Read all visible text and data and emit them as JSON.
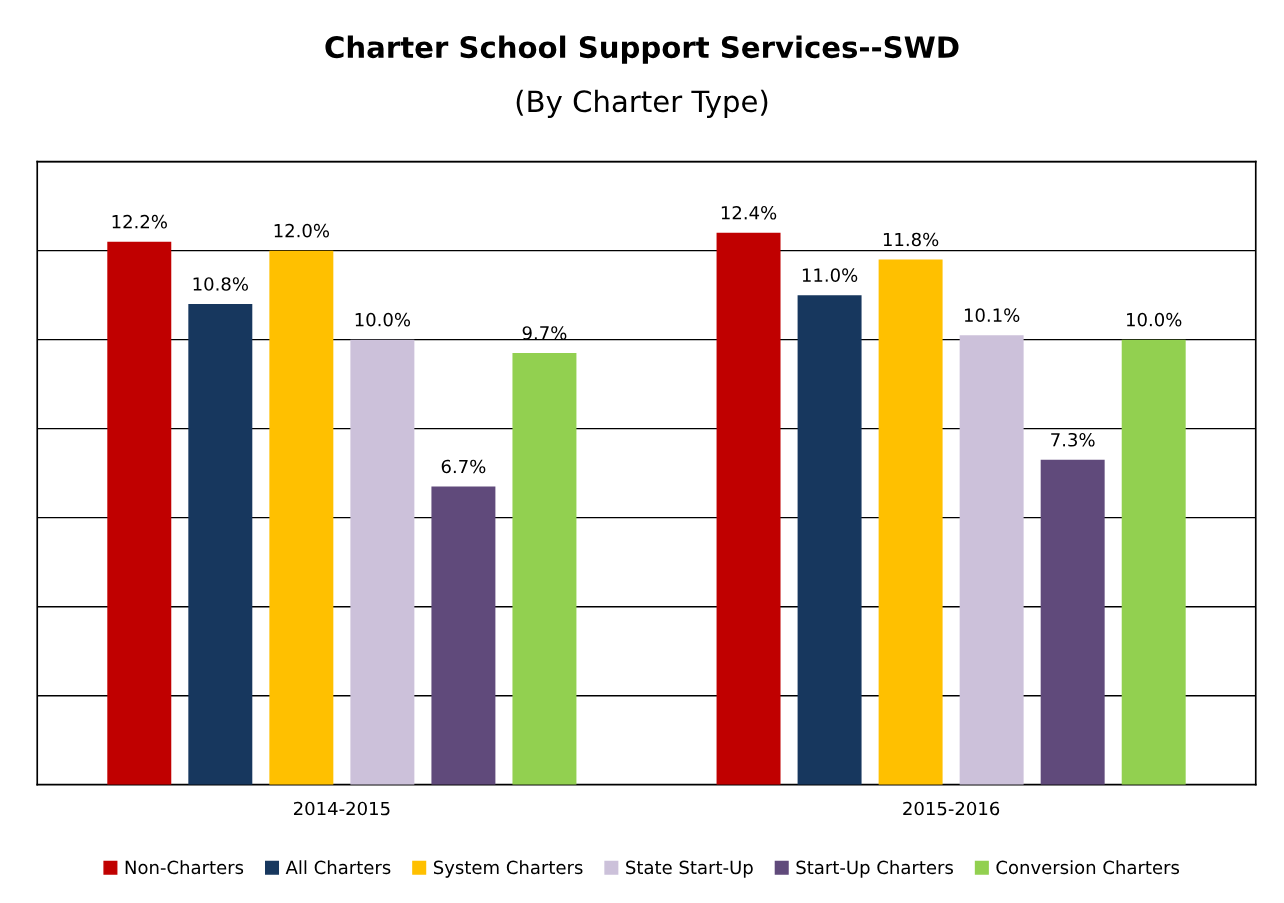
{
  "chart_data": {
    "type": "bar",
    "title": "Charter School Support Services--SWD",
    "subtitle": "(By Charter Type)",
    "categories": [
      "2014-2015",
      "2015-2016"
    ],
    "series": [
      {
        "name": "Non-Charters",
        "color": "#c00000",
        "values": [
          12.2,
          12.4
        ],
        "value_labels": [
          "12.2%",
          "12.4%"
        ]
      },
      {
        "name": "All Charters",
        "color": "#17375e",
        "values": [
          10.8,
          11.0
        ],
        "value_labels": [
          "10.8%",
          "11.0%"
        ]
      },
      {
        "name": "System Charters",
        "color": "#ffc000",
        "values": [
          12.0,
          11.8
        ],
        "value_labels": [
          "12.0%",
          "11.8%"
        ]
      },
      {
        "name": "State Start-Up",
        "color": "#ccc1da",
        "values": [
          10.0,
          10.1
        ],
        "value_labels": [
          "10.0%",
          "10.1%"
        ]
      },
      {
        "name": "Start-Up Charters",
        "color": "#604a7b",
        "values": [
          6.7,
          7.3
        ],
        "value_labels": [
          "6.7%",
          "7.3%"
        ]
      },
      {
        "name": "Conversion Charters",
        "color": "#92d050",
        "values": [
          9.7,
          10.0
        ],
        "value_labels": [
          "9.7%",
          "10.0%"
        ]
      }
    ],
    "ylim": [
      0,
      14
    ],
    "yticks": [
      {
        "value": 0,
        "label": null
      },
      {
        "value": 2,
        "label": null
      },
      {
        "value": 4,
        "label": null
      },
      {
        "value": 6,
        "label": null
      },
      {
        "value": 8,
        "label": null
      },
      {
        "value": 10,
        "label": null
      },
      {
        "value": 12,
        "label": null
      },
      {
        "value": 14,
        "label": null
      }
    ],
    "tick_labels": "x",
    "grid": "y",
    "legend": "bottom"
  }
}
